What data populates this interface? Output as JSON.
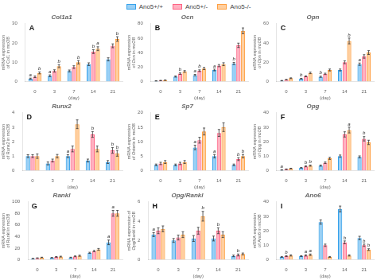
{
  "chart_data": [
    {
      "type": "bar",
      "title": "Col1a1",
      "annotation": "A",
      "xlabel": "(day)",
      "ylabel": "mRNA expression of Col1 in mcOB",
      "categories": [
        "0",
        "3",
        "7",
        "14",
        "21"
      ],
      "ylim": [
        0,
        30
      ],
      "yticks": [
        0,
        10,
        20,
        30
      ],
      "grid": false,
      "legend": "top",
      "series": [
        {
          "name": "Ano5+/+",
          "values": [
            1.5,
            3.0,
            5.5,
            9.0,
            11.5
          ],
          "errors": [
            0.3,
            0.5,
            0.5,
            0.7,
            0.8
          ],
          "sig_labels": [
            "a",
            "a",
            null,
            null,
            null
          ]
        },
        {
          "name": "Ano5+/-",
          "values": [
            2.5,
            5.5,
            7.5,
            15.5,
            18.5
          ],
          "errors": [
            0.4,
            0.6,
            0.7,
            1.0,
            1.0
          ],
          "sig_labels": [
            null,
            null,
            null,
            "b",
            null
          ]
        },
        {
          "name": "Ano5-/-",
          "values": [
            4.5,
            8.0,
            10.0,
            17.0,
            22.0
          ],
          "errors": [
            0.5,
            0.8,
            0.9,
            1.0,
            1.2
          ],
          "sig_labels": [
            "b",
            "b",
            "b",
            "a",
            "b"
          ]
        }
      ]
    },
    {
      "type": "bar",
      "title": "Ocn",
      "annotation": "B",
      "xlabel": "(day)",
      "ylabel": "mRNA expression of Ocn in mcOB",
      "categories": [
        "0",
        "3",
        "7",
        "14",
        "21"
      ],
      "ylim": [
        0,
        80
      ],
      "yticks": [
        0,
        20,
        40,
        60,
        80
      ],
      "grid": false,
      "legend": "top",
      "series": [
        {
          "name": "Ano5+/+",
          "values": [
            1.0,
            7.0,
            9.0,
            16.0,
            25.0
          ],
          "errors": [
            0.2,
            0.8,
            1.0,
            1.2,
            1.5
          ],
          "sig_labels": [
            null,
            null,
            "a",
            "a",
            "b"
          ]
        },
        {
          "name": "Ano5+/-",
          "values": [
            1.5,
            11.0,
            15.0,
            22.0,
            50.0
          ],
          "errors": [
            0.3,
            1.0,
            1.2,
            1.5,
            3.0
          ],
          "sig_labels": [
            null,
            "b",
            "b",
            null,
            null
          ]
        },
        {
          "name": "Ano5-/-",
          "values": [
            2.0,
            14.0,
            18.0,
            24.0,
            70.0
          ],
          "errors": [
            0.3,
            1.2,
            1.5,
            2.0,
            4.0
          ],
          "sig_labels": [
            null,
            null,
            null,
            null,
            null
          ]
        }
      ]
    },
    {
      "type": "bar",
      "title": "Opn",
      "annotation": "C",
      "xlabel": "(day)",
      "ylabel": "mRNA expression of Opn in mcOB",
      "categories": [
        "0",
        "3",
        "7",
        "14",
        "21"
      ],
      "ylim": [
        0,
        60
      ],
      "yticks": [
        0,
        20,
        40,
        60
      ],
      "grid": false,
      "legend": "top",
      "series": [
        {
          "name": "Ano5+/+",
          "values": [
            1.0,
            3.0,
            5.0,
            12.0,
            18.0
          ],
          "errors": [
            0.2,
            0.4,
            0.6,
            1.0,
            1.2
          ],
          "sig_labels": [
            null,
            "b",
            "b",
            null,
            "a"
          ]
        },
        {
          "name": "Ano5+/-",
          "values": [
            2.0,
            5.5,
            8.0,
            20.0,
            26.0
          ],
          "errors": [
            0.3,
            0.5,
            0.7,
            1.5,
            1.8
          ],
          "sig_labels": [
            null,
            null,
            null,
            null,
            null
          ]
        },
        {
          "name": "Ano5-/-",
          "values": [
            3.5,
            9.0,
            12.0,
            42.0,
            30.0
          ],
          "errors": [
            0.4,
            0.8,
            1.0,
            3.0,
            2.0
          ],
          "sig_labels": [
            null,
            null,
            null,
            "b",
            null
          ]
        }
      ]
    },
    {
      "type": "bar",
      "title": "Runx2",
      "annotation": "D",
      "xlabel": "(day)",
      "ylabel": "mRNA expression of Runx2 in mcOB",
      "categories": [
        "0",
        "3",
        "7",
        "14",
        "21"
      ],
      "ylim": [
        0,
        4
      ],
      "yticks": [
        0,
        1,
        2,
        3,
        4
      ],
      "grid": false,
      "legend": "top",
      "series": [
        {
          "name": "Ano5+/+",
          "values": [
            1.0,
            0.5,
            1.0,
            0.7,
            0.6
          ],
          "errors": [
            0.1,
            0.1,
            0.1,
            0.1,
            0.1
          ],
          "sig_labels": [
            null,
            null,
            "a",
            null,
            null
          ]
        },
        {
          "name": "Ano5+/-",
          "values": [
            1.0,
            0.7,
            1.5,
            2.5,
            1.4
          ],
          "errors": [
            0.1,
            0.1,
            0.2,
            0.2,
            0.2
          ],
          "sig_labels": [
            null,
            null,
            null,
            "b",
            "b"
          ]
        },
        {
          "name": "Ano5-/-",
          "values": [
            1.0,
            1.0,
            3.2,
            1.5,
            1.2
          ],
          "errors": [
            0.15,
            0.12,
            0.3,
            0.2,
            0.2
          ],
          "sig_labels": [
            null,
            null,
            null,
            null,
            "b"
          ]
        }
      ]
    },
    {
      "type": "bar",
      "title": "Sp7",
      "annotation": "E",
      "xlabel": "(day)",
      "ylabel": "mRNA expression of Osterix in mcOB",
      "categories": [
        "0",
        "3",
        "7",
        "14",
        "21"
      ],
      "ylim": [
        0,
        20
      ],
      "yticks": [
        0,
        5,
        10,
        15,
        20
      ],
      "grid": false,
      "legend": "top",
      "series": [
        {
          "name": "Ano5+/+",
          "values": [
            2.0,
            2.0,
            8.0,
            5.0,
            2.0
          ],
          "errors": [
            0.3,
            0.3,
            0.8,
            0.6,
            0.3
          ],
          "sig_labels": [
            null,
            null,
            "a",
            "a",
            null
          ]
        },
        {
          "name": "Ano5+/-",
          "values": [
            2.5,
            2.5,
            10.5,
            13.0,
            4.0
          ],
          "errors": [
            0.4,
            0.4,
            1.0,
            1.2,
            0.5
          ],
          "sig_labels": [
            null,
            null,
            null,
            null,
            "b"
          ]
        },
        {
          "name": "Ano5-/-",
          "values": [
            3.0,
            3.0,
            13.5,
            15.0,
            5.0
          ],
          "errors": [
            0.5,
            0.5,
            1.2,
            1.5,
            0.6
          ],
          "sig_labels": [
            null,
            null,
            null,
            null,
            "b"
          ]
        }
      ]
    },
    {
      "type": "bar",
      "title": "Opg",
      "annotation": "F",
      "xlabel": "(day)",
      "ylabel": "mRNA expression of Opg in mcOB",
      "categories": [
        "0",
        "3",
        "7",
        "14",
        "21"
      ],
      "ylim": [
        0,
        40
      ],
      "yticks": [
        0,
        10,
        20,
        30,
        40
      ],
      "grid": false,
      "legend": "top",
      "series": [
        {
          "name": "Ano5+/+",
          "values": [
            0.5,
            2.0,
            3.5,
            10.0,
            9.5
          ],
          "errors": [
            0.1,
            0.2,
            0.4,
            0.8,
            0.7
          ],
          "sig_labels": [
            "a",
            null,
            null,
            null,
            null
          ]
        },
        {
          "name": "Ano5+/-",
          "values": [
            1.0,
            3.0,
            5.5,
            25.0,
            22.0
          ],
          "errors": [
            0.2,
            0.3,
            0.5,
            1.8,
            1.5
          ],
          "sig_labels": [
            null,
            "b",
            null,
            null,
            "b"
          ]
        },
        {
          "name": "Ano5-/-",
          "values": [
            1.5,
            3.5,
            8.5,
            28.0,
            19.5
          ],
          "errors": [
            0.2,
            0.4,
            0.7,
            2.0,
            1.5
          ],
          "sig_labels": [
            null,
            "b",
            null,
            "a",
            null
          ]
        }
      ]
    },
    {
      "type": "bar",
      "title": "Rankl",
      "annotation": "G",
      "xlabel": "(day)",
      "ylabel": "mRNA expression of Rankl in mcOB",
      "categories": [
        "0",
        "3",
        "7",
        "14",
        "21"
      ],
      "ylim": [
        0,
        100
      ],
      "yticks": [
        0,
        20,
        40,
        60,
        80,
        100
      ],
      "grid": false,
      "legend": "top",
      "series": [
        {
          "name": "Ano5+/+",
          "values": [
            2.0,
            3.5,
            4.0,
            12.0,
            30.0
          ],
          "errors": [
            0.3,
            0.5,
            0.5,
            1.0,
            4.0
          ],
          "sig_labels": [
            null,
            null,
            null,
            null,
            "a"
          ]
        },
        {
          "name": "Ano5+/-",
          "values": [
            3.0,
            5.0,
            6.0,
            15.0,
            80.0
          ],
          "errors": [
            0.4,
            0.6,
            0.7,
            1.2,
            5.0
          ],
          "sig_labels": [
            null,
            null,
            null,
            null,
            "a"
          ]
        },
        {
          "name": "Ano5-/-",
          "values": [
            4.0,
            5.5,
            7.0,
            18.0,
            80.0
          ],
          "errors": [
            0.5,
            0.7,
            0.9,
            1.5,
            5.0
          ],
          "sig_labels": [
            null,
            null,
            null,
            null,
            null
          ]
        }
      ]
    },
    {
      "type": "bar",
      "title": "Opg/Rankl",
      "annotation": "H",
      "xlabel": "(day)",
      "ylabel": "mRNA expression of Opg/Rankl in mcOB",
      "categories": [
        "0",
        "3",
        "7",
        "14",
        "21"
      ],
      "ylim": [
        0,
        6
      ],
      "yticks": [
        0,
        2,
        4,
        6
      ],
      "grid": false,
      "legend": "top",
      "series": [
        {
          "name": "Ano5+/+",
          "values": [
            2.6,
            2.0,
            2.2,
            2.2,
            0.4
          ],
          "errors": [
            0.2,
            0.2,
            0.3,
            0.25,
            0.08
          ],
          "sig_labels": [
            "a",
            null,
            null,
            null,
            null
          ]
        },
        {
          "name": "Ano5+/-",
          "values": [
            3.0,
            2.3,
            3.0,
            3.0,
            0.5
          ],
          "errors": [
            0.3,
            0.25,
            0.35,
            0.3,
            0.1
          ],
          "sig_labels": [
            null,
            null,
            null,
            "b",
            "b"
          ]
        },
        {
          "name": "Ano5-/-",
          "values": [
            3.2,
            2.6,
            4.5,
            2.6,
            0.6
          ],
          "errors": [
            0.3,
            0.3,
            0.5,
            0.3,
            0.1
          ],
          "sig_labels": [
            null,
            null,
            "b",
            null,
            null
          ]
        }
      ]
    },
    {
      "type": "bar",
      "title": "Ano6",
      "annotation": "I",
      "xlabel": "(day)",
      "ylabel": "mRNA expression of Ano6 in mcOB",
      "categories": [
        "0",
        "3",
        "7",
        "14",
        "21"
      ],
      "ylim": [
        0,
        40
      ],
      "yticks": [
        0,
        10,
        20,
        30,
        40
      ],
      "grid": false,
      "legend": "top",
      "series": [
        {
          "name": "Ano5+/+",
          "values": [
            2.0,
            2.5,
            26.0,
            35.0,
            15.0
          ],
          "errors": [
            0.3,
            0.3,
            1.5,
            2.0,
            1.2
          ],
          "sig_labels": [
            null,
            null,
            null,
            null,
            null
          ]
        },
        {
          "name": "Ano5+/-",
          "values": [
            2.5,
            3.0,
            10.0,
            12.0,
            10.0
          ],
          "errors": [
            0.3,
            0.4,
            0.8,
            1.0,
            0.8
          ],
          "sig_labels": [
            "b",
            "a",
            null,
            "b",
            "b"
          ]
        },
        {
          "name": "Ano5-/-",
          "values": [
            3.0,
            3.5,
            2.0,
            3.0,
            7.0
          ],
          "errors": [
            0.4,
            0.5,
            0.3,
            0.4,
            0.6
          ],
          "sig_labels": [
            null,
            "a",
            null,
            null,
            "b"
          ]
        }
      ]
    }
  ]
}
